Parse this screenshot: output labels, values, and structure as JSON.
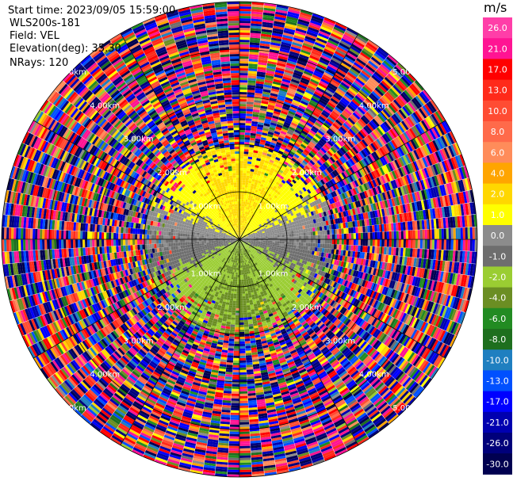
{
  "header": {
    "start_time": "Start time: 2023/09/05 15:59:00",
    "instrument": "WLS200s-181",
    "field": "Field: VEL",
    "elevation": "Elevation(deg): 35.30",
    "nrays": "NRays: 120"
  },
  "colorbar": {
    "unit": "m/s",
    "ticks": [
      "26.0",
      "21.0",
      "17.0",
      "13.0",
      "10.0",
      "8.0",
      "6.0",
      "4.0",
      "2.0",
      "1.0",
      "0.0",
      "-1.0",
      "-2.0",
      "-4.0",
      "-6.0",
      "-8.0",
      "-10.0",
      "-13.0",
      "-17.0",
      "-21.0",
      "-26.0",
      "-30.0"
    ],
    "colors": [
      "#ff3ea8",
      "#ff1493",
      "#ff0000",
      "#ff2a1a",
      "#ff4c33",
      "#ff6a4a",
      "#ff8c5a",
      "#ffa500",
      "#ffd700",
      "#ffff00",
      "#8c8c8c",
      "#6e6e6e",
      "#9acd32",
      "#6b8e23",
      "#228b22",
      "#1e6f1e",
      "#1f7fc0",
      "#0050ff",
      "#0000ff",
      "#0000b0",
      "#00007a",
      "#000050"
    ]
  },
  "chart_data": {
    "type": "heatmap",
    "projection": "polar",
    "field": "VEL",
    "units": "m/s",
    "nrays": 120,
    "range_rings_km": [
      1.0,
      2.0,
      3.0,
      4.0,
      5.0
    ],
    "ring_labels": [
      "1.00km",
      "2.00km",
      "3.00km",
      "4.00km",
      "5.00km"
    ],
    "spokes_deg": [
      0,
      30,
      60,
      90,
      120,
      150,
      180,
      210,
      240,
      270,
      300,
      330
    ],
    "color_levels": [
      26.0,
      21.0,
      17.0,
      13.0,
      10.0,
      8.0,
      6.0,
      4.0,
      2.0,
      1.0,
      0.0,
      -1.0,
      -2.0,
      -4.0,
      -6.0,
      -8.0,
      -10.0,
      -13.0,
      -17.0,
      -21.0,
      -26.0,
      -30.0
    ],
    "pattern": {
      "near_range_km": [
        0.0,
        1.0
      ],
      "north_sector": "yellow 1.0 to 2.0 m/s",
      "south_sector": "green -1.0 to -4.0 m/s",
      "east_west": "gray 0.0 m/s",
      "beyond_km": 2.0,
      "beyond": "noisy random values"
    }
  }
}
